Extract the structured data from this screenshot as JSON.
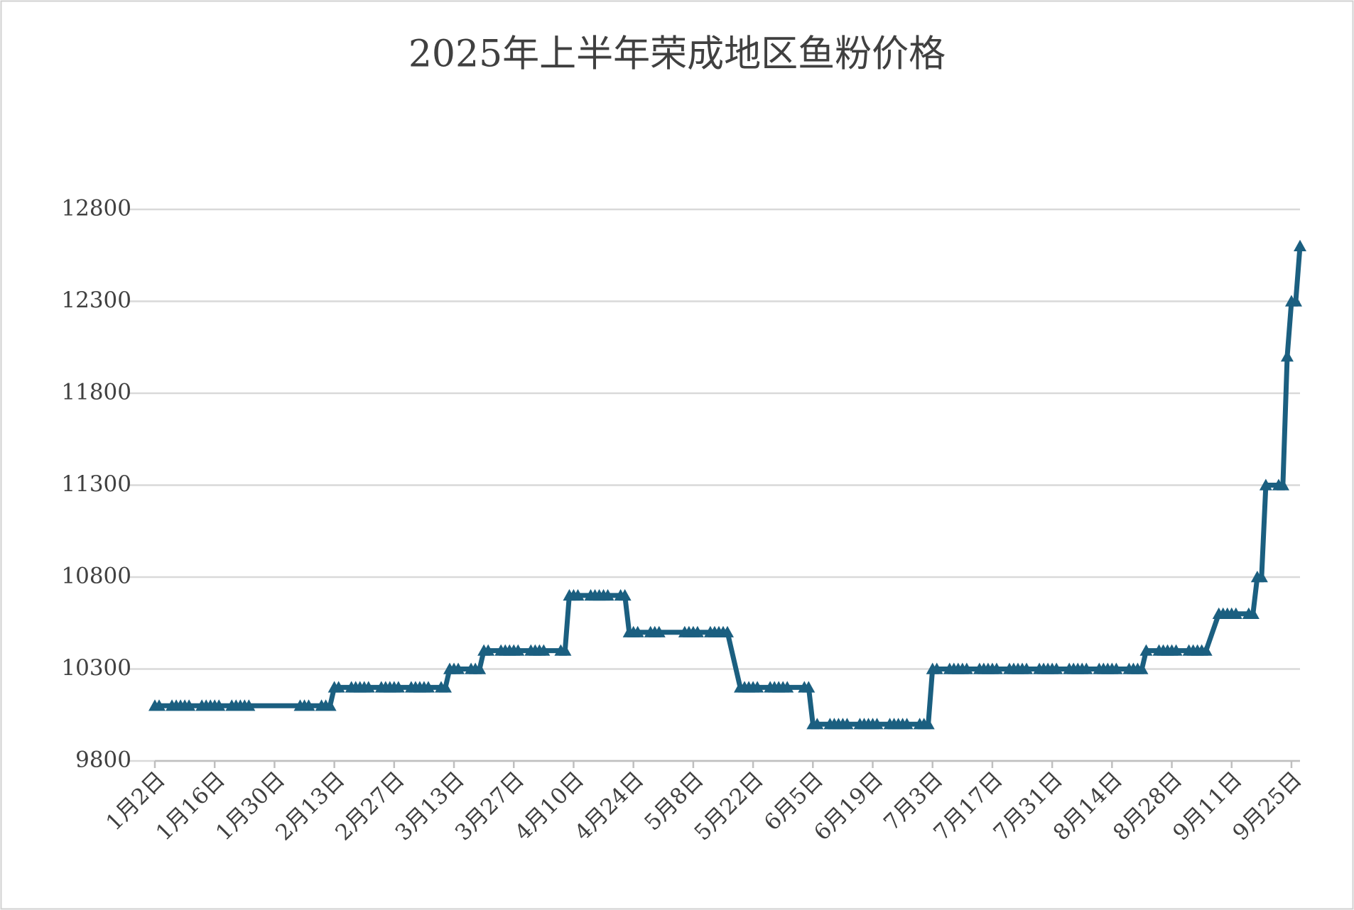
{
  "chart_data": {
    "type": "line",
    "title": "2025年上半年荣成地区鱼粉价格",
    "x": [
      "1月2日",
      "1月3日",
      "1月6日",
      "1月7日",
      "1月8日",
      "1月9日",
      "1月10日",
      "1月13日",
      "1月14日",
      "1月15日",
      "1月16日",
      "1月17日",
      "1月20日",
      "1月21日",
      "1月22日",
      "1月23日",
      "1月24日",
      "2月5日",
      "2月6日",
      "2月7日",
      "2月10日",
      "2月11日",
      "2月12日",
      "2月13日",
      "2月14日",
      "2月17日",
      "2月18日",
      "2月19日",
      "2月20日",
      "2月21日",
      "2月24日",
      "2月25日",
      "2月26日",
      "2月27日",
      "2月28日",
      "3月3日",
      "3月4日",
      "3月5日",
      "3月6日",
      "3月7日",
      "3月10日",
      "3月11日",
      "3月12日",
      "3月13日",
      "3月14日",
      "3月17日",
      "3月18日",
      "3月19日",
      "3月20日",
      "3月21日",
      "3月24日",
      "3月25日",
      "3月26日",
      "3月27日",
      "3月28日",
      "3月31日",
      "4月1日",
      "4月2日",
      "4月3日",
      "4月7日",
      "4月8日",
      "4月9日",
      "4月10日",
      "4月11日",
      "4月14日",
      "4月15日",
      "4月16日",
      "4月17日",
      "4月18日",
      "4月21日",
      "4月22日",
      "4月23日",
      "4月24日",
      "4月25日",
      "4月28日",
      "4月29日",
      "4月30日",
      "5月6日",
      "5月7日",
      "5月8日",
      "5月9日",
      "5月12日",
      "5月13日",
      "5月14日",
      "5月15日",
      "5月16日",
      "5月19日",
      "5月20日",
      "5月21日",
      "5月22日",
      "5月23日",
      "5月26日",
      "5月27日",
      "5月28日",
      "5月29日",
      "5月30日",
      "6月3日",
      "6月4日",
      "6月5日",
      "6月6日",
      "6月9日",
      "6月10日",
      "6月11日",
      "6月12日",
      "6月13日",
      "6月16日",
      "6月17日",
      "6月18日",
      "6月19日",
      "6月20日",
      "6月23日",
      "6月24日",
      "6月25日",
      "6月26日",
      "6月27日",
      "6月30日",
      "7月1日",
      "7月2日",
      "7月3日",
      "7月4日",
      "7月7日",
      "7月8日",
      "7月9日",
      "7月10日",
      "7月11日",
      "7月14日",
      "7月15日",
      "7月16日",
      "7月17日",
      "7月18日",
      "7月21日",
      "7月22日",
      "7月23日",
      "7月24日",
      "7月25日",
      "7月28日",
      "7月29日",
      "7月30日",
      "7月31日",
      "8月1日",
      "8月4日",
      "8月5日",
      "8月6日",
      "8月7日",
      "8月8日",
      "8月11日",
      "8月12日",
      "8月13日",
      "8月14日",
      "8月15日",
      "8月18日",
      "8月19日",
      "8月20日",
      "8月21日",
      "8月22日",
      "8月25日",
      "8月26日",
      "8月27日",
      "8月28日",
      "8月29日",
      "9月1日",
      "9月2日",
      "9月3日",
      "9月4日",
      "9月5日",
      "9月8日",
      "9月9日",
      "9月10日",
      "9月11日",
      "9月12日",
      "9月15日",
      "9月16日",
      "9月17日",
      "9月18日",
      "9月19日",
      "9月22日",
      "9月23日",
      "9月24日",
      "9月25日",
      "9月26日",
      "9月27日"
    ],
    "values": [
      10100,
      10100,
      10100,
      10100,
      10100,
      10100,
      10100,
      10100,
      10100,
      10100,
      10100,
      10100,
      10100,
      10100,
      10100,
      10100,
      10100,
      10100,
      10100,
      10100,
      10100,
      10100,
      10100,
      10200,
      10200,
      10200,
      10200,
      10200,
      10200,
      10200,
      10200,
      10200,
      10200,
      10200,
      10200,
      10200,
      10200,
      10200,
      10200,
      10200,
      10200,
      10200,
      10300,
      10300,
      10300,
      10300,
      10300,
      10300,
      10400,
      10400,
      10400,
      10400,
      10400,
      10400,
      10400,
      10400,
      10400,
      10400,
      10400,
      10400,
      10400,
      10700,
      10700,
      10700,
      10700,
      10700,
      10700,
      10700,
      10700,
      10700,
      10700,
      10500,
      10500,
      10500,
      10500,
      10500,
      10500,
      10500,
      10500,
      10500,
      10500,
      10500,
      10500,
      10500,
      10500,
      10500,
      10200,
      10200,
      10200,
      10200,
      10200,
      10200,
      10200,
      10200,
      10200,
      10200,
      10200,
      10200,
      10000,
      10000,
      10000,
      10000,
      10000,
      10000,
      10000,
      10000,
      10000,
      10000,
      10000,
      10000,
      10000,
      10000,
      10000,
      10000,
      10000,
      10000,
      10000,
      10000,
      10300,
      10300,
      10300,
      10300,
      10300,
      10300,
      10300,
      10300,
      10300,
      10300,
      10300,
      10300,
      10300,
      10300,
      10300,
      10300,
      10300,
      10300,
      10300,
      10300,
      10300,
      10300,
      10300,
      10300,
      10300,
      10300,
      10300,
      10300,
      10300,
      10300,
      10300,
      10300,
      10300,
      10300,
      10300,
      10300,
      10400,
      10400,
      10400,
      10400,
      10400,
      10400,
      10400,
      10400,
      10400,
      10400,
      10400,
      10600,
      10600,
      10600,
      10600,
      10600,
      10600,
      10600,
      10800,
      10800,
      11300,
      11300,
      11300,
      12000,
      12300,
      12300,
      12600
    ],
    "color": "#1b5f80",
    "xlim": [
      "1月2日",
      "9月27日"
    ],
    "xticks": [
      "1月2日",
      "1月16日",
      "1月30日",
      "2月13日",
      "2月27日",
      "3月13日",
      "3月27日",
      "4月10日",
      "4月24日",
      "5月8日",
      "5月22日",
      "6月5日",
      "6月19日",
      "7月3日",
      "7月17日",
      "7月31日",
      "8月14日",
      "8月28日",
      "9月11日",
      "9月25日"
    ],
    "ylim": [
      9800,
      12800
    ],
    "yticks": [
      9800,
      10300,
      10800,
      11300,
      11800,
      12300,
      12800
    ],
    "grid": true
  }
}
